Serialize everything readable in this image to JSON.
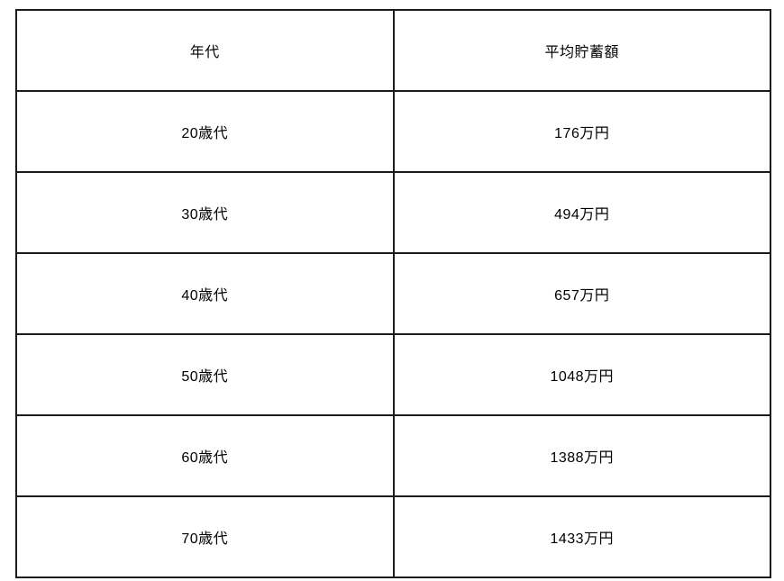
{
  "chart_data": {
    "type": "table",
    "title": "",
    "columns": [
      "年代",
      "平均貯蓄額"
    ],
    "rows": [
      [
        "20歳代",
        "176万円"
      ],
      [
        "30歳代",
        "494万円"
      ],
      [
        "40歳代",
        "657万円"
      ],
      [
        "50歳代",
        "1048万円"
      ],
      [
        "60歳代",
        "1388万円"
      ],
      [
        "70歳代",
        "1433万円"
      ]
    ]
  },
  "table": {
    "headers": {
      "age": "年代",
      "savings": "平均貯蓄額"
    },
    "rows": [
      {
        "age": "20歳代",
        "savings": "176万円"
      },
      {
        "age": "30歳代",
        "savings": "494万円"
      },
      {
        "age": "40歳代",
        "savings": "657万円"
      },
      {
        "age": "50歳代",
        "savings": "1048万円"
      },
      {
        "age": "60歳代",
        "savings": "1388万円"
      },
      {
        "age": "70歳代",
        "savings": "1433万円"
      }
    ]
  },
  "colors": {
    "border": "#1c1c1c",
    "text": "#000000",
    "background": "#ffffff"
  }
}
